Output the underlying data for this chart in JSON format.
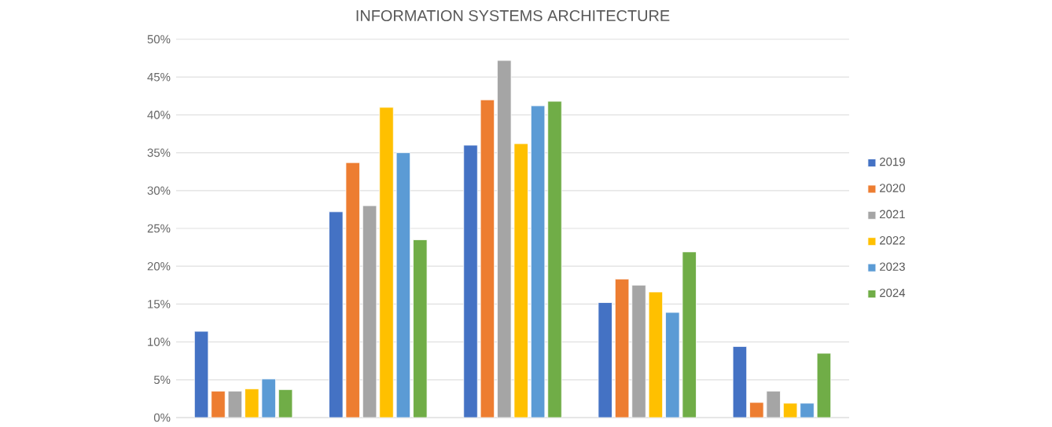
{
  "chart_data": {
    "type": "bar",
    "title": "INFORMATION SYSTEMS ARCHITECTURE",
    "categories": [
      null,
      null,
      null,
      null,
      null
    ],
    "series": [
      {
        "name": "2019",
        "color": "#4472c4",
        "values": [
          11.4,
          27.2,
          36.0,
          15.2,
          9.4
        ]
      },
      {
        "name": "2020",
        "color": "#ed7d31",
        "values": [
          3.5,
          33.7,
          42.0,
          18.3,
          2.0
        ]
      },
      {
        "name": "2021",
        "color": "#a5a5a5",
        "values": [
          3.5,
          28.0,
          47.2,
          17.5,
          3.5
        ]
      },
      {
        "name": "2022",
        "color": "#ffc000",
        "values": [
          3.8,
          41.0,
          36.2,
          16.6,
          1.9
        ]
      },
      {
        "name": "2023",
        "color": "#5b9bd5",
        "values": [
          5.1,
          35.0,
          41.2,
          13.9,
          1.9
        ]
      },
      {
        "name": "2024",
        "color": "#70ad47",
        "values": [
          3.7,
          23.5,
          41.8,
          21.9,
          8.5
        ]
      }
    ],
    "ylim": [
      0,
      50
    ],
    "yticks": [
      {
        "value": 0,
        "label": "0%"
      },
      {
        "value": 5,
        "label": "5%"
      },
      {
        "value": 10,
        "label": "10%"
      },
      {
        "value": 15,
        "label": "15%"
      },
      {
        "value": 20,
        "label": "20%"
      },
      {
        "value": 25,
        "label": "25%"
      },
      {
        "value": 30,
        "label": "30%"
      },
      {
        "value": 35,
        "label": "35%"
      },
      {
        "value": 40,
        "label": "40%"
      },
      {
        "value": 45,
        "label": "45%"
      },
      {
        "value": 50,
        "label": "50%"
      }
    ],
    "grid": "y",
    "legend": "right"
  }
}
